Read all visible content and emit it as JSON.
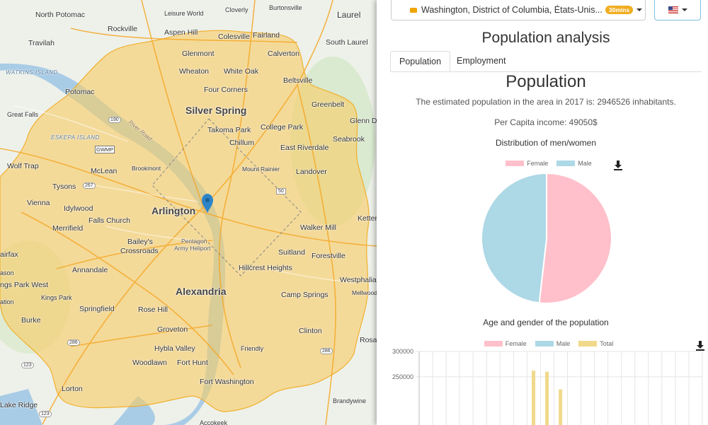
{
  "map": {
    "labels": {
      "north_potomac": "North Potomac",
      "leisure_world": "Leisure World",
      "cloverly": "Cloverly",
      "burtonsville": "Burtonsville",
      "laurel": "Laurel",
      "rockville": "Rockville",
      "aspen_hill": "Aspen Hill",
      "colesville": "Colesville",
      "fairland": "Fairland",
      "travilah": "Travilah",
      "south_laurel": "South Laurel",
      "glenmont": "Glenmont",
      "calverton": "Calverton",
      "watkins_island": "WATKINS ISLAND",
      "wheaton": "Wheaton",
      "white_oak": "White Oak",
      "potomac": "Potomac",
      "four_corners": "Four Corners",
      "beltsville": "Beltsville",
      "silver_spring": "Silver Spring",
      "greenbelt": "Greenbelt",
      "great_falls": "Great Falls",
      "takoma_park": "Takoma Park",
      "college_park": "College Park",
      "glenn_dale": "Glenn D",
      "eskepa_island": "ESKEPA ISLAND",
      "river_road": "River Road",
      "chillum": "Chillum",
      "seabrook": "Seabrook",
      "gwmp": "GWMP",
      "east_riverdale": "East Riverdale",
      "wolf_trap": "Wolf Trap",
      "mclean": "McLean",
      "brookmont": "Brookmont",
      "mount_rainier": "Mount Rainier",
      "landover": "Landover",
      "tysons": "Tysons",
      "vienna": "Vienna",
      "idylwood": "Idylwood",
      "arlington": "Arlington",
      "ketter": "Ketter",
      "merrifield": "Merrifield",
      "falls_church": "Falls Church",
      "walker_mill": "Walker Mill",
      "baileys": "Bailey's",
      "crossroads": "Crossroads",
      "pentagon": "Pentagon",
      "army_heliport": "Army Heliport",
      "suitland": "Suitland",
      "forestville": "Forestville",
      "fairfax": "airfax",
      "annandale": "Annandale",
      "hillcrest_heights": "Hillcrest Heights",
      "westphalia": "Westphalia",
      "lason": "ason",
      "ngs_park_west": "ngs Park West",
      "alexandria": "Alexandria",
      "kings_park": "Kings Park",
      "camp_springs": "Camp Springs",
      "mellwood": "Mellwood",
      "ation": "ation",
      "springfield": "Springfield",
      "rose_hill": "Rose Hill",
      "burke": "Burke",
      "groveton": "Groveton",
      "clinton": "Clinton",
      "rosa": "Rosa",
      "hybla_valley": "Hybla Valley",
      "friendly": "Friendly",
      "woodlawn": "Woodlawn",
      "fort_hunt": "Fort Hunt",
      "fort_washington": "Fort Washington",
      "lorton": "Lorton",
      "brandywine": "Brandywine",
      "lake_ridge": "Lake Ridge",
      "accokeek": "Accokeek",
      "r190": "190",
      "r267": "267",
      "r50": "50",
      "r286": "286",
      "r123": "123",
      "r286b": "286",
      "r123b": "123"
    }
  },
  "panel": {
    "location_label": "Washington, District of Columbia, États-Unis...",
    "time_badge": "30mins",
    "title": "Population analysis",
    "tabs": [
      "Population",
      "Employment"
    ],
    "section_title": "Population",
    "population_text": "The estimated population in the area in 2017 is: 2946526 inhabitants.",
    "income_text": "Per Capita income: 49050$",
    "pie_title": "Distribution of men/women",
    "bar_title": "Age and gender of the population"
  },
  "colors": {
    "female": "#ffc0cb",
    "male": "#add8e6",
    "total": "#f0d98a",
    "isochrone": "#f9cc63"
  },
  "chart_data": [
    {
      "type": "pie",
      "title": "Distribution of men/women",
      "labels": [
        "Female",
        "Male"
      ],
      "values": [
        51.8,
        48.2
      ],
      "legend": "top"
    },
    {
      "type": "bar",
      "title": "Age and gender of the population",
      "series": [
        {
          "name": "Female",
          "values": []
        },
        {
          "name": "Male",
          "values": []
        },
        {
          "name": "Total",
          "values": [
            262000,
            260000,
            225000
          ]
        }
      ],
      "y_ticks": [
        "300000",
        "250000"
      ],
      "ylim_visible": [
        200000,
        300000
      ],
      "legend": "top"
    }
  ]
}
